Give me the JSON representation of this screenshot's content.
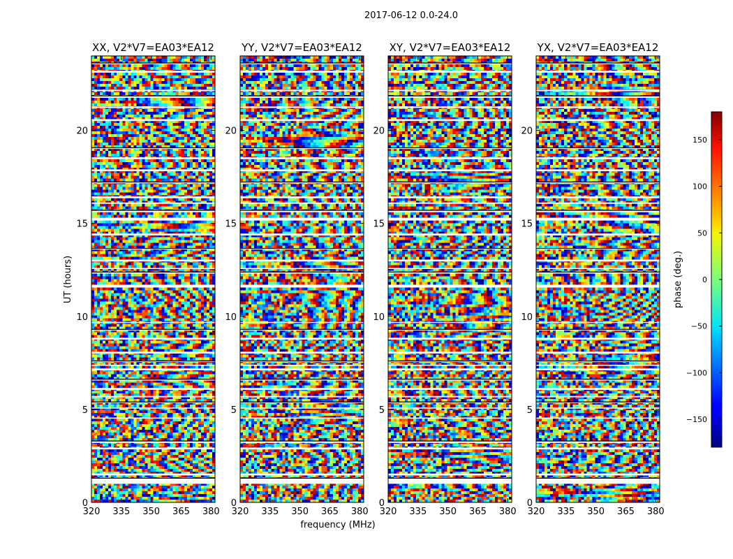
{
  "chart_data": {
    "type": "heatmap",
    "title": "2017-06-12 0.0-24.0",
    "xlabel": "frequency (MHz)",
    "ylabel": "UT (hours)",
    "xlim": [
      320,
      382
    ],
    "ylim": [
      0,
      24
    ],
    "xticks": [
      320,
      335,
      350,
      365,
      380
    ],
    "yticks": [
      0,
      5,
      10,
      15,
      20
    ],
    "panels": [
      {
        "title": "XX, V2*V7=EA03*EA12",
        "polarization": "XX"
      },
      {
        "title": "YY, V2*V7=EA03*EA12",
        "polarization": "YY"
      },
      {
        "title": "XY, V2*V7=EA03*EA12",
        "polarization": "XY"
      },
      {
        "title": "YX, V2*V7=EA03*EA12",
        "polarization": "YX"
      }
    ],
    "colorbar": {
      "label": "phase (deg.)",
      "range": [
        -180,
        180
      ],
      "ticks": [
        -150,
        -100,
        -50,
        0,
        50,
        100,
        150
      ],
      "colormap": "jet"
    },
    "gap_bands_hours": [
      [
        1.0,
        1.3
      ],
      [
        1.45,
        1.55
      ],
      [
        2.85,
        2.95
      ],
      [
        3.2,
        3.3
      ],
      [
        4.5,
        4.56
      ],
      [
        5.05,
        5.1
      ],
      [
        5.35,
        5.4
      ],
      [
        5.65,
        5.72
      ],
      [
        6.05,
        6.15
      ],
      [
        6.55,
        6.62
      ],
      [
        7.1,
        7.2
      ],
      [
        7.35,
        7.4
      ],
      [
        7.55,
        7.6
      ],
      [
        8.0,
        8.1
      ],
      [
        8.75,
        8.85
      ],
      [
        9.25,
        9.3
      ],
      [
        9.65,
        9.7
      ],
      [
        11.55,
        11.7
      ],
      [
        12.3,
        12.38
      ],
      [
        12.55,
        12.6
      ],
      [
        12.95,
        13.05
      ],
      [
        13.6,
        13.65
      ],
      [
        14.35,
        14.45
      ],
      [
        15.15,
        15.3
      ],
      [
        15.6,
        15.7
      ],
      [
        16.05,
        16.12
      ],
      [
        16.35,
        16.45
      ],
      [
        17.15,
        17.22
      ],
      [
        17.8,
        17.9
      ],
      [
        18.45,
        18.55
      ],
      [
        19.0,
        19.06
      ],
      [
        20.5,
        20.6
      ],
      [
        21.2,
        21.28
      ],
      [
        21.75,
        21.85
      ],
      [
        22.1,
        22.18
      ],
      [
        23.1,
        23.2
      ],
      [
        23.55,
        23.62
      ]
    ]
  }
}
